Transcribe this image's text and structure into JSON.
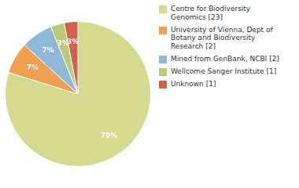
{
  "chart_data": {
    "type": "pie",
    "categories": [
      "Centre for Biodiversity\nGenomics [23]",
      "University of Vienna, Dept of\nBotany and Biodiversity\nResearch [2]",
      "Mined from GenBank, NCBI [2]",
      "Wellcome Sanger Institute [1]",
      "Unknown [1]"
    ],
    "values": [
      79,
      7,
      7,
      3,
      3
    ],
    "value_labels": [
      "79%",
      "7%",
      "7%",
      "3%",
      "3%"
    ],
    "colors": [
      "#d4db8e",
      "#f0a050",
      "#90b8d8",
      "#b8cc78",
      "#d46050"
    ],
    "data_labels": true,
    "legend": "right"
  }
}
